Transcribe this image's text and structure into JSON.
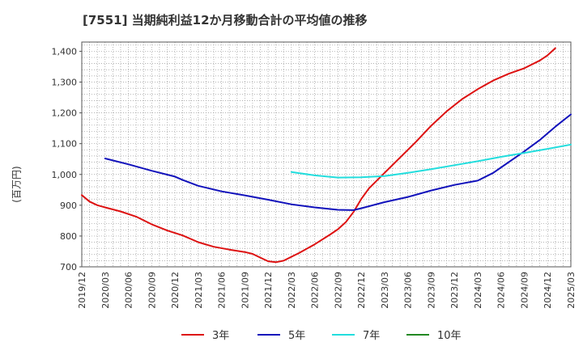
{
  "chart_data": {
    "type": "line",
    "title": "[7551]  当期純利益12か月移動合計の平均値の推移",
    "xlabel": "",
    "ylabel": "(百万円)",
    "ylim": [
      700,
      1430
    ],
    "yticks": [
      700,
      800,
      900,
      1000,
      1100,
      1200,
      1300,
      1400
    ],
    "ytick_labels": [
      "700",
      "800",
      "900",
      "1,000",
      "1,100",
      "1,200",
      "1,300",
      "1,400"
    ],
    "xticks": [
      "2019/12",
      "2020/03",
      "2020/06",
      "2020/09",
      "2020/12",
      "2021/03",
      "2021/06",
      "2021/09",
      "2021/12",
      "2022/03",
      "2022/06",
      "2022/09",
      "2022/12",
      "2023/03",
      "2023/06",
      "2023/09",
      "2023/12",
      "2024/03",
      "2024/06",
      "2024/09",
      "2024/12",
      "2025/03"
    ],
    "grid": true,
    "legend_position": "bottom",
    "series": [
      {
        "name": "3年",
        "color": "#dd1111",
        "points": [
          [
            "2019/12",
            933
          ],
          [
            "2020/01",
            912
          ],
          [
            "2020/02",
            900
          ],
          [
            "2020/03",
            893
          ],
          [
            "2020/05",
            880
          ],
          [
            "2020/07",
            863
          ],
          [
            "2020/09",
            838
          ],
          [
            "2020/11",
            818
          ],
          [
            "2021/01",
            802
          ],
          [
            "2021/03",
            780
          ],
          [
            "2021/05",
            765
          ],
          [
            "2021/07",
            756
          ],
          [
            "2021/09",
            748
          ],
          [
            "2021/10",
            742
          ],
          [
            "2021/11",
            730
          ],
          [
            "2021/12",
            718
          ],
          [
            "2022/01",
            715
          ],
          [
            "2022/02",
            720
          ],
          [
            "2022/04",
            745
          ],
          [
            "2022/06",
            773
          ],
          [
            "2022/08",
            805
          ],
          [
            "2022/09",
            822
          ],
          [
            "2022/10",
            845
          ],
          [
            "2022/11",
            878
          ],
          [
            "2022/12",
            920
          ],
          [
            "2023/01",
            955
          ],
          [
            "2023/03",
            1005
          ],
          [
            "2023/05",
            1055
          ],
          [
            "2023/07",
            1105
          ],
          [
            "2023/09",
            1158
          ],
          [
            "2023/11",
            1205
          ],
          [
            "2024/01",
            1245
          ],
          [
            "2024/03",
            1277
          ],
          [
            "2024/05",
            1305
          ],
          [
            "2024/07",
            1327
          ],
          [
            "2024/09",
            1345
          ],
          [
            "2024/11",
            1370
          ],
          [
            "2024/12",
            1387
          ],
          [
            "2025/01",
            1410
          ]
        ]
      },
      {
        "name": "5年",
        "color": "#1111bb",
        "points": [
          [
            "2020/03",
            1052
          ],
          [
            "2020/06",
            1033
          ],
          [
            "2020/09",
            1012
          ],
          [
            "2020/12",
            993
          ],
          [
            "2021/01",
            982
          ],
          [
            "2021/03",
            963
          ],
          [
            "2021/06",
            945
          ],
          [
            "2021/09",
            932
          ],
          [
            "2021/12",
            918
          ],
          [
            "2022/03",
            903
          ],
          [
            "2022/06",
            893
          ],
          [
            "2022/09",
            885
          ],
          [
            "2022/11",
            884
          ],
          [
            "2022/12",
            890
          ],
          [
            "2023/03",
            910
          ],
          [
            "2023/06",
            927
          ],
          [
            "2023/09",
            948
          ],
          [
            "2023/12",
            966
          ],
          [
            "2024/03",
            980
          ],
          [
            "2024/05",
            1005
          ],
          [
            "2024/07",
            1040
          ],
          [
            "2024/09",
            1075
          ],
          [
            "2024/11",
            1112
          ],
          [
            "2025/01",
            1155
          ],
          [
            "2025/03",
            1195
          ]
        ]
      },
      {
        "name": "7年",
        "color": "#22dddd",
        "points": [
          [
            "2022/03",
            1008
          ],
          [
            "2022/06",
            997
          ],
          [
            "2022/09",
            990
          ],
          [
            "2022/12",
            991
          ],
          [
            "2023/03",
            995
          ],
          [
            "2023/06",
            1005
          ],
          [
            "2023/09",
            1017
          ],
          [
            "2023/12",
            1030
          ],
          [
            "2024/03",
            1043
          ],
          [
            "2024/06",
            1057
          ],
          [
            "2024/09",
            1070
          ],
          [
            "2024/12",
            1083
          ],
          [
            "2025/03",
            1097
          ]
        ]
      },
      {
        "name": "10年",
        "color": "#228822",
        "points": []
      }
    ]
  }
}
